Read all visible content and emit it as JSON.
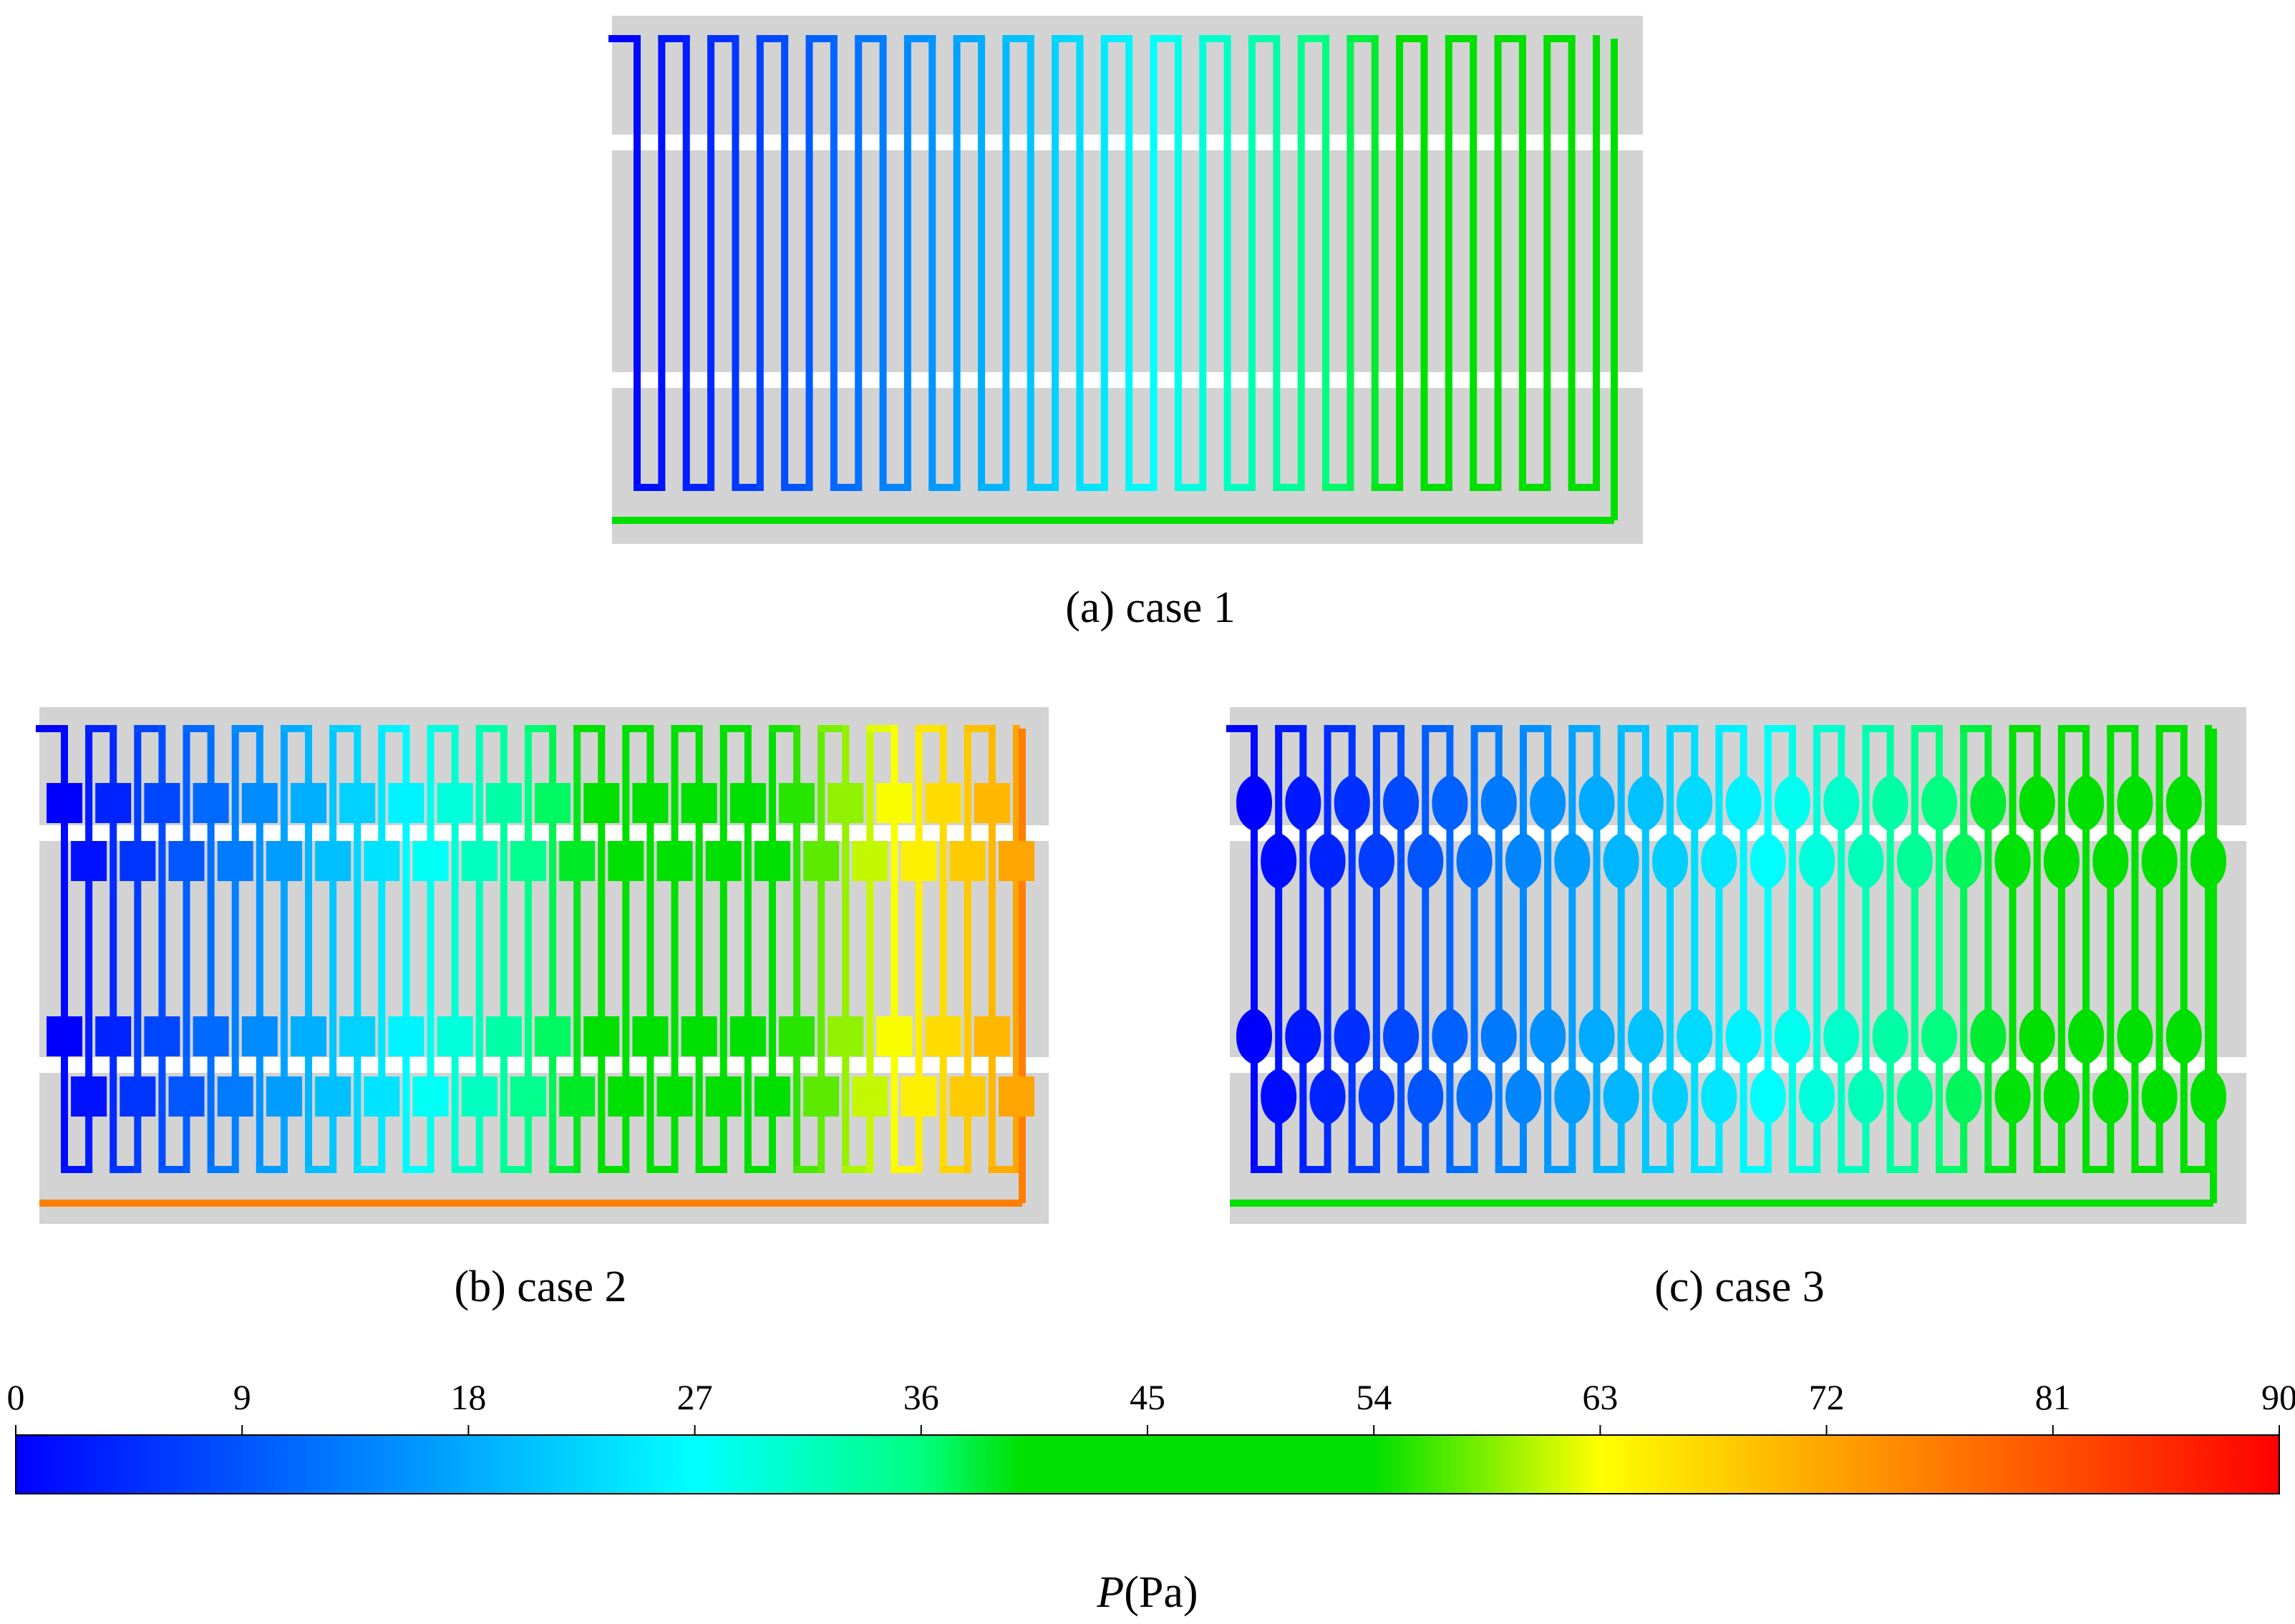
{
  "panels": [
    {
      "id": "a",
      "caption": "(a) case 1",
      "loops": 20,
      "pressure_range": [
        0,
        50
      ],
      "outlet_pressure": 52,
      "features": "none"
    },
    {
      "id": "b",
      "caption": "(b) case 2",
      "loops": 20,
      "pressure_range": [
        0,
        72
      ],
      "outlet_pressure": 76,
      "features": "square-chambers"
    },
    {
      "id": "c",
      "caption": "(c) case 3",
      "loops": 20,
      "pressure_range": [
        0,
        50
      ],
      "outlet_pressure": 50,
      "features": "rounded-chambers"
    }
  ],
  "colorbar": {
    "title_italic": "P",
    "title_rest": "(Pa)",
    "min": 0,
    "max": 90,
    "ticks": [
      "0",
      "9",
      "18",
      "27",
      "36",
      "45",
      "54",
      "63",
      "72",
      "81",
      "90"
    ],
    "colors": [
      {
        "v": 0,
        "c": "#0000ff"
      },
      {
        "v": 27,
        "c": "#00ffff"
      },
      {
        "v": 36,
        "c": "#00ff80"
      },
      {
        "v": 40,
        "c": "#00e000"
      },
      {
        "v": 54,
        "c": "#00e000"
      },
      {
        "v": 63,
        "c": "#ffff00"
      },
      {
        "v": 72,
        "c": "#ffa500"
      },
      {
        "v": 90,
        "c": "#ff0000"
      }
    ]
  },
  "colors": {
    "background_plate": "#d3d3d3",
    "separator": "#ffffff"
  }
}
